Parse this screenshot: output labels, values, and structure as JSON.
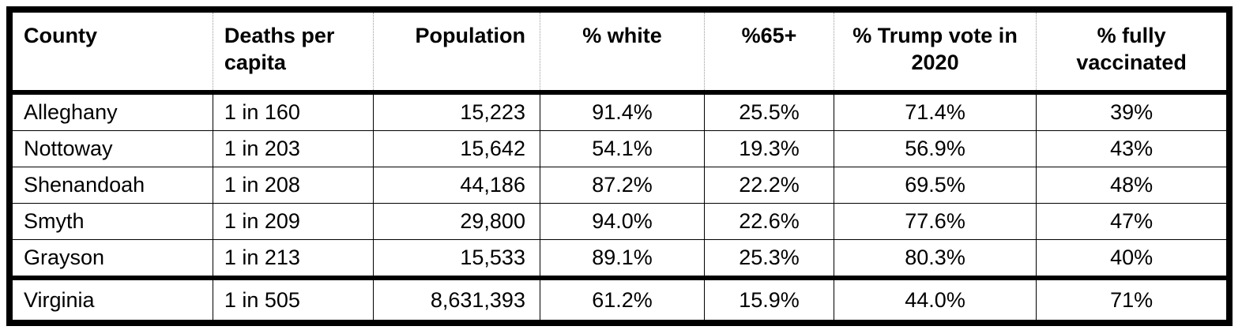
{
  "table": {
    "header": [
      "County",
      "Deaths per capita",
      "Population",
      "% white",
      "%65+",
      "% Trump vote in 2020",
      "% fully vaccinated"
    ],
    "rows": [
      [
        "Alleghany",
        "1 in 160",
        "15,223",
        "91.4%",
        "25.5%",
        "71.4%",
        "39%"
      ],
      [
        "Nottoway",
        "1 in 203",
        "15,642",
        "54.1%",
        "19.3%",
        "56.9%",
        "43%"
      ],
      [
        "Shenandoah",
        "1 in 208",
        "44,186",
        "87.2%",
        "22.2%",
        "69.5%",
        "48%"
      ],
      [
        "Smyth",
        "1 in 209",
        "29,800",
        "94.0%",
        "22.6%",
        "77.6%",
        "47%"
      ],
      [
        "Grayson",
        "1 in 213",
        "15,533",
        "89.1%",
        "25.3%",
        "80.3%",
        "40%"
      ]
    ],
    "total": [
      "Virginia",
      "1 in 505",
      "8,631,393",
      "61.2%",
      "15.9%",
      "44.0%",
      "71%"
    ]
  }
}
